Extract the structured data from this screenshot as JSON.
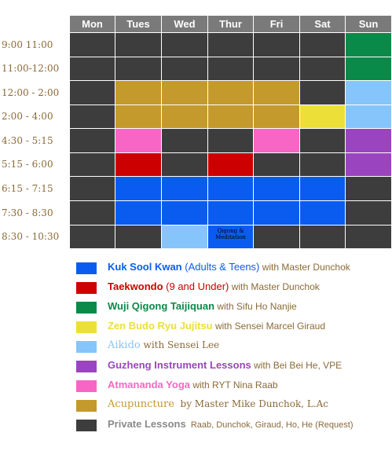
{
  "days": [
    "Mon",
    "Tues",
    "Wed",
    "Thur",
    "Fri",
    "Sat",
    "Sun"
  ],
  "time_slots": [
    "9:00   11:00",
    "11:00-12:00",
    "12:00 - 2:00",
    "2:00 - 4:00",
    "4:30 - 5:15",
    "5:15 - 6:00",
    "6:15 - 7:15",
    "7:30 - 8:30",
    "8:30 - 10:30"
  ],
  "colors": {
    "private": "#3d3d3d",
    "kuk_sool": "#0a5cf0",
    "taekwondo": "#cc0000",
    "wuji": "#0a8a48",
    "zen_budo": "#ece038",
    "aikido": "#86c5fb",
    "guzheng": "#9a44c0",
    "yoga": "#f766c4",
    "acupuncture": "#c49a2c"
  },
  "grid": [
    [
      "private",
      "private",
      "private",
      "private",
      "private",
      "private",
      "wuji"
    ],
    [
      "private",
      "private",
      "private",
      "private",
      "private",
      "private",
      "wuji"
    ],
    [
      "private",
      "acupuncture",
      "acupuncture",
      "acupuncture",
      "acupuncture",
      "private",
      "aikido"
    ],
    [
      "private",
      "acupuncture",
      "acupuncture",
      "acupuncture",
      "acupuncture",
      "zen_budo",
      "aikido"
    ],
    [
      "private",
      "yoga",
      "private",
      "private",
      "yoga",
      "private",
      "guzheng"
    ],
    [
      "private",
      "taekwondo",
      "private",
      "taekwondo",
      "private",
      "private",
      "guzheng"
    ],
    [
      "private",
      "kuk_sool",
      "kuk_sool",
      "kuk_sool",
      "kuk_sool",
      "kuk_sool",
      "private"
    ],
    [
      "private",
      "kuk_sool",
      "kuk_sool",
      "kuk_sool",
      "kuk_sool",
      "kuk_sool",
      "private"
    ],
    [
      "private",
      "private",
      "aikido",
      "kuk_sool",
      "private",
      "private",
      "private"
    ]
  ],
  "cell_notes": {
    "row": 8,
    "col": 3,
    "text": "Qigong & Meditation"
  },
  "legend": [
    {
      "key": "kuk_sool",
      "name": "Kuk Sool Kwan",
      "ages": " (Adults & Teens)",
      "instructor": " with Master Dunchok",
      "name_color": "#0a5cf0",
      "name_style": "sans"
    },
    {
      "key": "taekwondo",
      "name": "Taekwondo",
      "ages": " (9 and Under)",
      "instructor": " with Master Dunchok",
      "name_color": "#cc0000",
      "name_style": "sans"
    },
    {
      "key": "wuji",
      "name": "Wuji Qigong Taijiquan",
      "ages": "",
      "instructor": " with Sifu Ho Nanjie",
      "name_color": "#0a8a48",
      "name_style": "sans"
    },
    {
      "key": "zen_budo",
      "name": "Zen Budo Ryu Jujitsu",
      "ages": "",
      "instructor": " with Sensei Marcel Giraud",
      "name_color": "#ece038",
      "name_style": "sans"
    },
    {
      "key": "aikido",
      "name": "Aikido",
      "ages": "",
      "instructor": " with Sensei Lee",
      "name_color": "#86c5fb",
      "name_style": "serif"
    },
    {
      "key": "guzheng",
      "name": "Guzheng Instrument Lessons",
      "ages": "",
      "instructor": " with Bei Bei He, VPE",
      "name_color": "#9a44c0",
      "name_style": "sans"
    },
    {
      "key": "yoga",
      "name": "Atmananda Yoga",
      "ages": "",
      "instructor": " with RYT Nina Raab",
      "name_color": "#f766c4",
      "name_style": "sans"
    },
    {
      "key": "acupuncture",
      "name": "Acupuncture",
      "ages": "",
      "instructor": "  by Master Mike Dunchok, L.Ac",
      "name_color": "#c49a2c",
      "name_style": "serif"
    },
    {
      "key": "private",
      "name": "Private Lessons",
      "ages": "",
      "instructor": "  Raab, Dunchok, Giraud, Ho, He (Request)",
      "name_color": "#8a8a8a",
      "name_style": "sans"
    }
  ]
}
